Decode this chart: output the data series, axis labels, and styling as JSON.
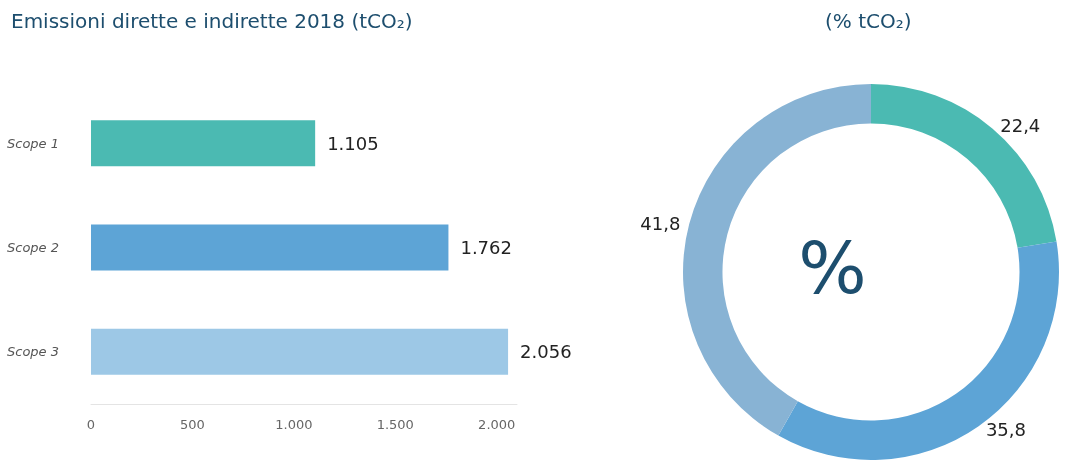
{
  "chart_data": [
    {
      "type": "bar",
      "orientation": "horizontal",
      "title": "Emissioni dirette e indirette 2018 (tCO₂)",
      "categories": [
        "Scope 1",
        "Scope 2",
        "Scope 3"
      ],
      "values": [
        1105,
        1762,
        2056
      ],
      "colors": [
        "#4bbab2",
        "#5da4d6",
        "#9dc8e6"
      ],
      "value_labels": [
        "1.105",
        "1.762",
        "2.056"
      ],
      "xlim": [
        0,
        2100
      ],
      "xticks": [
        0,
        500,
        {
          "value": 1000,
          "label": "1.000"
        },
        {
          "value": 1500,
          "label": "1.500"
        },
        {
          "value": 2000,
          "label": "2.000"
        }
      ],
      "grid": false
    },
    {
      "type": "donut",
      "title": "(% tCO₂)",
      "categories": [
        null,
        null,
        null
      ],
      "values": [
        22.4,
        35.8,
        41.8
      ],
      "colors": [
        "#4bbab2",
        "#5da4d6",
        "#88b3d4"
      ],
      "value_labels": [
        "22,4",
        "35,8",
        "41,8"
      ],
      "annotations": [
        "%"
      ]
    }
  ]
}
